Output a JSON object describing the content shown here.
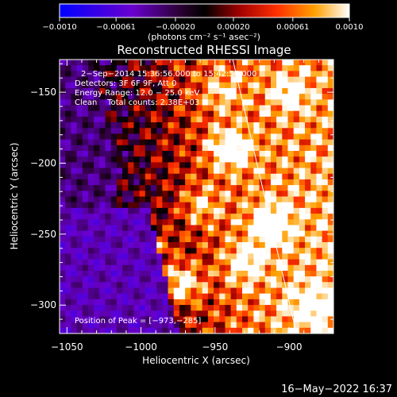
{
  "chart_data": {
    "type": "heatmap",
    "title": "Reconstructed RHESSI Image",
    "xlabel": "Heliocentric X (arcsec)",
    "ylabel": "Heliocentric Y (arcsec)",
    "xlim": [
      -1055,
      -870
    ],
    "ylim": [
      -320,
      -127
    ],
    "x_ticks": [
      -1050,
      -1000,
      -950,
      -900
    ],
    "x_tick_labels": [
      "−1050",
      "−1000",
      "−950",
      "−900"
    ],
    "y_ticks": [
      -150,
      -200,
      -250,
      -300
    ],
    "y_tick_labels": [
      "−150",
      "−200",
      "−250",
      "−300"
    ],
    "colorbar": {
      "range": [
        -0.001,
        0.001
      ],
      "ticks": [
        -0.001,
        -0.00061,
        -0.0002,
        0.0002,
        0.00061,
        0.001
      ],
      "tick_labels": [
        "−0.0010",
        "−0.00061",
        "−0.00020",
        "0.00020",
        "0.00061",
        "0.0010"
      ],
      "units": "(photons cm⁻² s⁻¹ asec⁻²)"
    },
    "annotations": [
      "2−Sep−2014 15:36:56.000 to 15:42:56.000",
      "Detectors: 3F 6F 9F, Att 0",
      "Energy Range: 12.0 − 25.0 keV",
      "Clean    Total counts: 2.38E+03"
    ],
    "peak_label": "Position of Peak = [−973,−285]",
    "peak": {
      "x": -973,
      "y": -285
    },
    "limb_line": [
      {
        "x": -938,
        "y": -127
      },
      {
        "x": -895,
        "y": -320
      }
    ],
    "grid": false
  },
  "footer": {
    "timestamp": "16−May−2022 16:37"
  }
}
